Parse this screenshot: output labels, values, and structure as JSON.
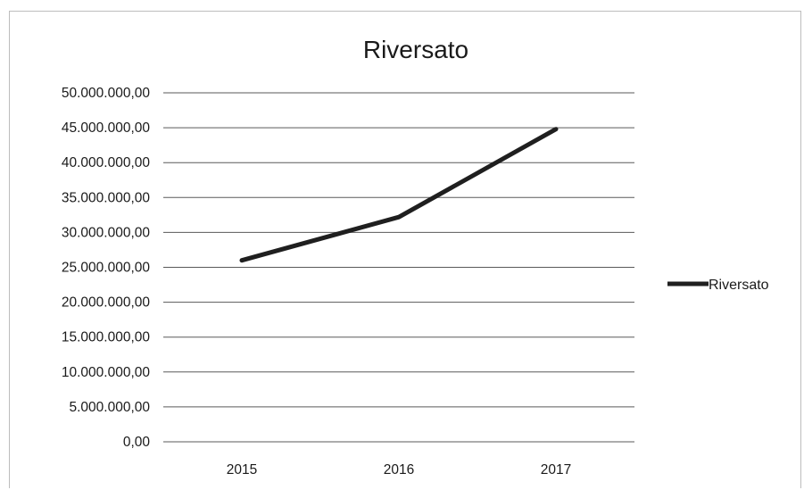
{
  "chart_data": {
    "type": "line",
    "title": "Riversato",
    "xlabel": "",
    "ylabel": "",
    "categories": [
      "2015",
      "2016",
      "2017"
    ],
    "series": [
      {
        "name": "Riversato",
        "values": [
          26000000,
          32200000,
          44800000
        ],
        "color": "#1f1f1f"
      }
    ],
    "ylim": [
      0,
      50000000
    ],
    "y_ticks": [
      "0,00",
      "5.000.000,00",
      "10.000.000,00",
      "15.000.000,00",
      "20.000.000,00",
      "25.000.000,00",
      "30.000.000,00",
      "35.000.000,00",
      "40.000.000,00",
      "45.000.000,00",
      "50.000.000,00"
    ],
    "grid": true,
    "legend": "right"
  }
}
